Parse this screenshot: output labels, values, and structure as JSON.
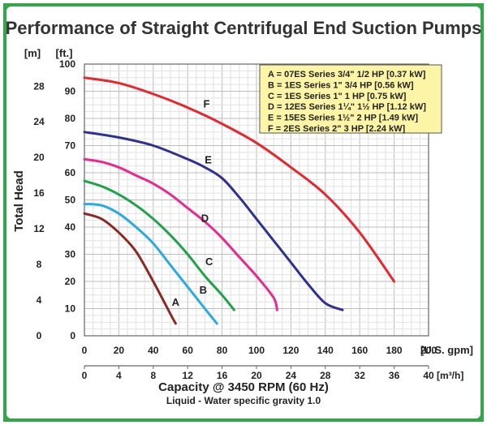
{
  "chart_data": {
    "type": "line",
    "title": "Performance of Straight Centrifugal End Suction Pumps",
    "ylabel": "Total Head",
    "y_units": {
      "meters": "[m]",
      "feet": "[ft.]"
    },
    "x_units": {
      "gpm": "[U.S. gpm]",
      "m3h": "[m³/h]"
    },
    "xlabel": "Capacity @ 3450 RPM (60 Hz)",
    "subtitle": "Liquid - Water specific gravity 1.0",
    "xlim": [
      0,
      200
    ],
    "ylim": [
      0,
      100
    ],
    "x_ticks_gpm": [
      "0",
      "20",
      "40",
      "60",
      "80",
      "100",
      "120",
      "140",
      "160",
      "180",
      "200"
    ],
    "x_ticks_m3h": [
      "0",
      "4",
      "8",
      "12",
      "16",
      "20",
      "24",
      "28",
      "32",
      "36",
      "40"
    ],
    "y_ticks_ft": [
      "0",
      "10",
      "20",
      "30",
      "40",
      "50",
      "60",
      "70",
      "80",
      "90",
      "100"
    ],
    "y_ticks_m": [
      "0",
      "4",
      "8",
      "12",
      "16",
      "20",
      "24",
      "28"
    ],
    "grid": true,
    "legend_position": "top-right",
    "legend": [
      "A = 07ES Series 3/4\" 1/2 HP [0.37 kW]",
      "B = 1ES Series 1\" 3/4 HP [0.56 kW]",
      "C = 1ES Series 1\" 1 HP [0.75 kW]",
      "D = 12ES Series 1¼\" 1½ HP [1.12 kW]",
      "E = 15ES Series 1½\" 2 HP [1.49 kW]",
      "F = 2ES Series 2\" 3 HP [2.24 kW]"
    ],
    "series": [
      {
        "name": "A",
        "color": "#8b2a24",
        "x": [
          0,
          10,
          20,
          30,
          40,
          50,
          53
        ],
        "y": [
          45,
          43,
          38,
          31,
          20,
          8,
          4.5
        ]
      },
      {
        "name": "B",
        "color": "#29abe2",
        "x": [
          0,
          10,
          20,
          30,
          40,
          50,
          60,
          70,
          77
        ],
        "y": [
          48.5,
          48,
          45,
          40,
          34,
          26,
          18,
          10,
          4.5
        ]
      },
      {
        "name": "C",
        "color": "#1fa34a",
        "x": [
          0,
          10,
          20,
          30,
          40,
          50,
          60,
          70,
          80,
          87
        ],
        "y": [
          57,
          55,
          52,
          48,
          43,
          37,
          30,
          22,
          15,
          9.5
        ]
      },
      {
        "name": "D",
        "color": "#e82a8f",
        "x": [
          0,
          10,
          20,
          30,
          40,
          50,
          60,
          70,
          80,
          90,
          100,
          110,
          112
        ],
        "y": [
          65,
          64,
          62,
          59,
          56,
          52,
          47,
          42,
          36,
          29,
          22,
          14,
          9.5
        ]
      },
      {
        "name": "E",
        "color": "#2e3192",
        "x": [
          0,
          20,
          40,
          60,
          70,
          80,
          90,
          100,
          110,
          120,
          130,
          140,
          150
        ],
        "y": [
          75,
          73,
          70,
          65,
          62,
          58,
          51,
          43,
          35,
          27,
          19,
          12,
          9.5
        ]
      },
      {
        "name": "F",
        "color": "#e8262d",
        "x": [
          0,
          20,
          40,
          60,
          80,
          100,
          120,
          140,
          160,
          180
        ],
        "y": [
          95,
          93,
          89,
          84,
          78,
          71,
          62,
          52,
          38,
          20
        ]
      }
    ],
    "curve_labels": [
      {
        "text": "A",
        "x": 53,
        "y": 12.5
      },
      {
        "text": "B",
        "x": 69,
        "y": 17
      },
      {
        "text": "C",
        "x": 72.5,
        "y": 27.5
      },
      {
        "text": "D",
        "x": 70,
        "y": 43.5
      },
      {
        "text": "E",
        "x": 72,
        "y": 65
      },
      {
        "text": "F",
        "x": 71,
        "y": 85.5
      }
    ]
  }
}
